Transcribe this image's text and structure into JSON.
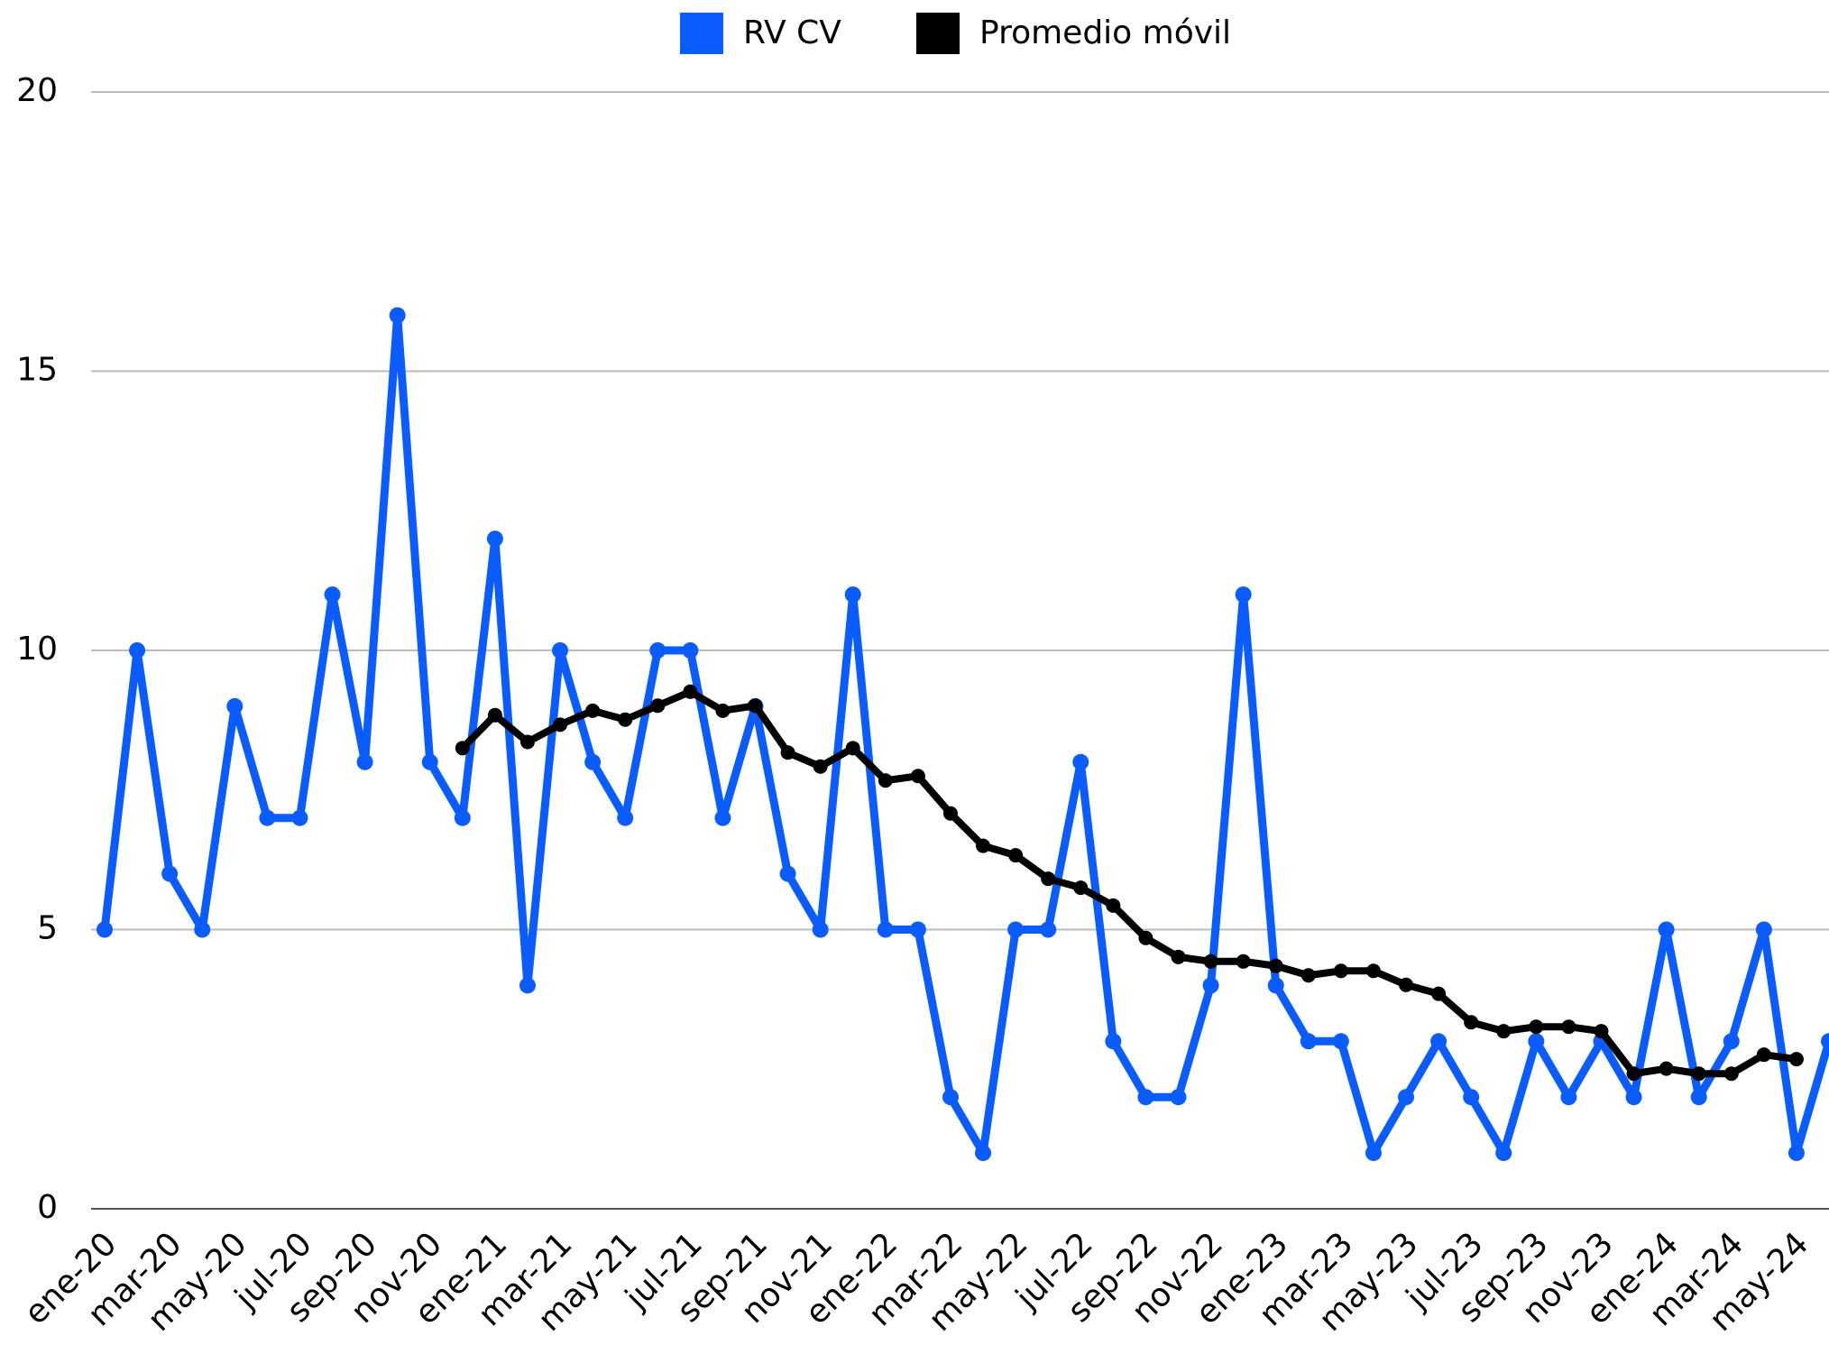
{
  "chart_data": {
    "type": "line",
    "categories": [
      "ene-20",
      null,
      "mar-20",
      null,
      "may-20",
      null,
      "jul-20",
      null,
      "sep-20",
      null,
      "nov-20",
      null,
      "ene-21",
      null,
      "mar-21",
      null,
      "may-21",
      null,
      "jul-21",
      null,
      "sep-21",
      null,
      "nov-21",
      null,
      "ene-22",
      null,
      "mar-22",
      null,
      "may-22",
      null,
      "jul-22",
      null,
      "sep-22",
      null,
      "nov-22",
      null,
      "ene-23",
      null,
      "mar-23",
      null,
      "may-23",
      null,
      "jul-23",
      null,
      "sep-23",
      null,
      "nov-23",
      null,
      "ene-24",
      null,
      "mar-24",
      null,
      "may-24",
      null
    ],
    "series": [
      {
        "name": "RV CV",
        "color": "#0a5cff",
        "values": [
          5,
          10,
          6,
          5,
          9,
          7,
          7,
          11,
          8,
          16,
          8,
          7,
          12,
          4,
          10,
          8,
          7,
          10,
          10,
          7,
          9,
          6,
          5,
          11,
          5,
          5,
          2,
          1,
          5,
          5,
          8,
          3,
          2,
          2,
          4,
          11,
          4,
          3,
          3,
          1,
          2,
          3,
          2,
          1,
          3,
          2,
          3,
          2,
          5,
          2,
          3,
          5,
          1,
          3
        ]
      },
      {
        "name": "Promedio móvil",
        "color": "#000000",
        "values": [
          null,
          null,
          null,
          null,
          null,
          null,
          null,
          null,
          null,
          null,
          null,
          8.25,
          8.84,
          8.36,
          8.67,
          8.92,
          8.76,
          9.01,
          9.26,
          8.92,
          9.01,
          8.17,
          7.92,
          8.25,
          7.67,
          7.75,
          7.08,
          6.5,
          6.33,
          5.91,
          5.75,
          5.43,
          4.85,
          4.51,
          4.43,
          4.43,
          4.35,
          4.18,
          4.26,
          4.26,
          4.01,
          3.85,
          3.34,
          3.18,
          3.26,
          3.26,
          3.18,
          2.42,
          2.51,
          2.42,
          2.42,
          2.76,
          2.68,
          null
        ]
      }
    ],
    "ylim": [
      0,
      20
    ],
    "yticks": [
      0,
      5,
      10,
      15,
      20
    ],
    "grid": true,
    "legend": "top"
  }
}
